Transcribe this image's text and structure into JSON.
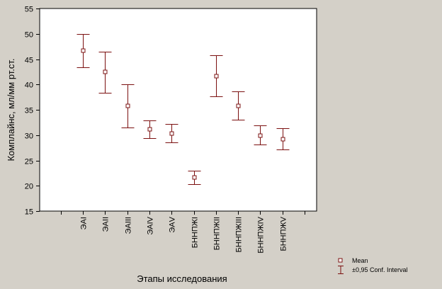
{
  "chart_data": {
    "type": "errorbar",
    "categories": [
      "ЭАI",
      "ЭАII",
      "ЭАIII",
      "ЭАIV",
      "ЭАV",
      "БННПЖI",
      "БННПЖII",
      "БННПЖIII",
      "БННПЖIV",
      "БННПЖV"
    ],
    "mean": [
      46.7,
      42.5,
      35.8,
      31.2,
      30.4,
      21.7,
      41.7,
      35.8,
      30.0,
      29.3
    ],
    "ci_lower": [
      43.4,
      38.4,
      31.5,
      29.4,
      28.5,
      20.3,
      37.7,
      33.0,
      28.1,
      27.1
    ],
    "ci_upper": [
      49.9,
      46.5,
      40.0,
      32.9,
      32.2,
      23.0,
      45.7,
      38.6,
      31.9,
      31.4
    ],
    "xlabel": "Этапы исследования",
    "ylabel": "Комплайнс, мл/мм рт.ст.",
    "ylim": [
      15,
      55
    ],
    "yticks": [
      "15",
      "20",
      "25",
      "30",
      "35",
      "40",
      "45",
      "50",
      "55"
    ],
    "grid": false,
    "legend": {
      "position": "bottom-right",
      "mean_label": "Mean",
      "interval_label": "±0,95 Conf. Interval"
    },
    "colors": {
      "series": "#7b1010",
      "background": "#d4d0c8",
      "plot_area": "#ffffff"
    }
  }
}
